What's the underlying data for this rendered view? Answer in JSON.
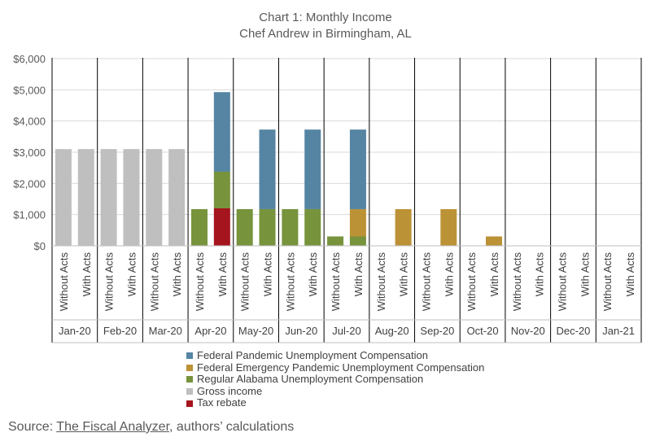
{
  "chart_data": {
    "type": "bar",
    "stacked": true,
    "title": "Chart 1: Monthly Income",
    "subtitle": "Chef Andrew in Birmingham, AL",
    "ylim": [
      0,
      6000
    ],
    "y_ticks": [
      0,
      1000,
      2000,
      3000,
      4000,
      5000,
      6000
    ],
    "y_tick_labels": [
      "$0",
      "$1,000",
      "$2,000",
      "$3,000",
      "$4,000",
      "$5,000",
      "$6,000"
    ],
    "grid": true,
    "legend_position": "bottom",
    "months": [
      "Jan-20",
      "Feb-20",
      "Mar-20",
      "Apr-20",
      "May-20",
      "Jun-20",
      "Jul-20",
      "Aug-20",
      "Sep-20",
      "Oct-20",
      "Nov-20",
      "Dec-20",
      "Jan-21"
    ],
    "scenarios": [
      "Without Acts",
      "With Acts"
    ],
    "series": [
      {
        "name": "Tax rebate",
        "color": "#a5151d",
        "without": [
          0,
          0,
          0,
          0,
          0,
          0,
          0,
          0,
          0,
          0,
          0,
          0,
          0
        ],
        "with": [
          0,
          0,
          0,
          1200,
          0,
          0,
          0,
          0,
          0,
          0,
          0,
          0,
          0
        ]
      },
      {
        "name": "Gross income",
        "color": "#bfbfbf",
        "without": [
          3100,
          3100,
          3100,
          0,
          0,
          0,
          0,
          0,
          0,
          0,
          0,
          0,
          0
        ],
        "with": [
          3100,
          3100,
          3100,
          0,
          0,
          0,
          0,
          0,
          0,
          0,
          0,
          0,
          0
        ]
      },
      {
        "name": "Regular Alabama Unemployment Compensation",
        "color": "#77933c",
        "without": [
          0,
          0,
          0,
          1175,
          1175,
          1175,
          300,
          0,
          0,
          0,
          0,
          0,
          0
        ],
        "with": [
          0,
          0,
          0,
          1175,
          1175,
          1175,
          300,
          0,
          0,
          0,
          0,
          0,
          0
        ]
      },
      {
        "name": "Federal Emergency Pandemic Unemployment Compensation",
        "color": "#bc9237",
        "without": [
          0,
          0,
          0,
          0,
          0,
          0,
          0,
          0,
          0,
          0,
          0,
          0,
          0
        ],
        "with": [
          0,
          0,
          0,
          0,
          0,
          0,
          875,
          1175,
          1175,
          300,
          0,
          0,
          0
        ]
      },
      {
        "name": "Federal Pandemic Unemployment Compensation",
        "color": "#5585a3",
        "without": [
          0,
          0,
          0,
          0,
          0,
          0,
          0,
          0,
          0,
          0,
          0,
          0,
          0
        ],
        "with": [
          0,
          0,
          0,
          2550,
          2550,
          2550,
          2550,
          0,
          0,
          0,
          0,
          0,
          0
        ]
      }
    ],
    "legend_order": [
      "Federal Pandemic Unemployment Compensation",
      "Federal Emergency Pandemic Unemployment Compensation",
      "Regular Alabama Unemployment Compensation",
      "Gross income",
      "Tax rebate"
    ]
  },
  "source": {
    "prefix": "Source: ",
    "link_text": "The Fiscal Analyzer",
    "suffix": ", authors’ calculations"
  }
}
